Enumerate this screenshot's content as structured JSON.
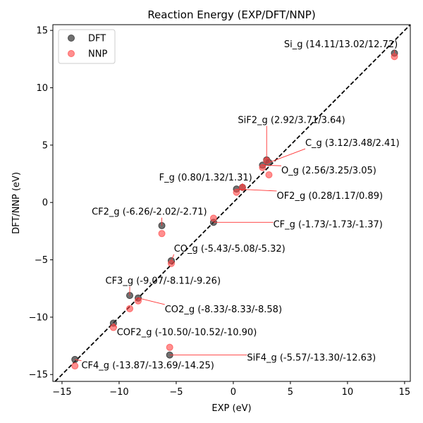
{
  "chart_data": {
    "type": "scatter",
    "title": "Reaction Energy (EXP/DFT/NNP)",
    "xlabel": "EXP (eV)",
    "ylabel": "DFT/NNP (eV)",
    "xlim": [
      -15.8,
      15.5
    ],
    "ylim": [
      -15.6,
      15.5
    ],
    "xticks": [
      -15,
      -10,
      -5,
      0,
      5,
      10,
      15
    ],
    "yticks": [
      -15,
      -10,
      -5,
      0,
      5,
      10,
      15
    ],
    "xtick_labels": [
      "−15",
      "−10",
      "−5",
      "0",
      "5",
      "10",
      "15"
    ],
    "ytick_labels": [
      "−15",
      "−10",
      "−5",
      "0",
      "5",
      "10",
      "15"
    ],
    "grid": false,
    "legend_position": "top-left",
    "reference_line": "y = x (dashed black)",
    "series": [
      {
        "name": "DFT",
        "color": "#333333",
        "points": [
          [
            14.11,
            13.02
          ],
          [
            2.92,
            3.71
          ],
          [
            3.12,
            3.48
          ],
          [
            2.56,
            3.25
          ],
          [
            0.8,
            1.32
          ],
          [
            0.28,
            1.17
          ],
          [
            -6.26,
            -2.02
          ],
          [
            -1.73,
            -1.73
          ],
          [
            -5.43,
            -5.08
          ],
          [
            -9.07,
            -8.11
          ],
          [
            -8.33,
            -8.33
          ],
          [
            -10.5,
            -10.52
          ],
          [
            -5.57,
            -13.3
          ],
          [
            -13.87,
            -13.69
          ]
        ]
      },
      {
        "name": "NNP",
        "color": "#ff4444",
        "points": [
          [
            14.11,
            12.72
          ],
          [
            2.92,
            3.64
          ],
          [
            3.12,
            2.41
          ],
          [
            2.56,
            3.05
          ],
          [
            0.8,
            1.31
          ],
          [
            0.28,
            0.89
          ],
          [
            -6.26,
            -2.71
          ],
          [
            -1.73,
            -1.37
          ],
          [
            -5.43,
            -5.32
          ],
          [
            -9.07,
            -9.26
          ],
          [
            -8.33,
            -8.58
          ],
          [
            -10.5,
            -10.9
          ],
          [
            -5.57,
            -12.63
          ],
          [
            -13.87,
            -14.25
          ]
        ]
      }
    ],
    "annotations": [
      {
        "text": "Si_g (14.11/13.02/12.72)",
        "target": [
          14.11,
          13.02
        ],
        "label_pos": [
          14.4,
          13.8
        ],
        "anchor": "end"
      },
      {
        "text": "SiF2_g (2.92/3.71/3.64)",
        "target": [
          2.92,
          3.71
        ],
        "label_pos": [
          0.4,
          7.2
        ],
        "anchor": "start"
      },
      {
        "text": "C_g (3.12/3.48/2.41)",
        "target": [
          3.12,
          3.48
        ],
        "label_pos": [
          6.3,
          5.2
        ],
        "anchor": "start"
      },
      {
        "text": "O_g (2.56/3.25/3.05)",
        "target": [
          2.56,
          3.25
        ],
        "label_pos": [
          4.2,
          2.8
        ],
        "anchor": "start"
      },
      {
        "text": "F_g (0.80/1.32/1.31)",
        "target": [
          0.8,
          1.32
        ],
        "label_pos": [
          -6.5,
          2.2
        ],
        "anchor": "start"
      },
      {
        "text": "OF2_g (0.28/1.17/0.89)",
        "target": [
          0.28,
          1.17
        ],
        "label_pos": [
          3.8,
          0.6
        ],
        "anchor": "start"
      },
      {
        "text": "CF2_g (-6.26/-2.02/-2.71)",
        "target": [
          -6.26,
          -2.02
        ],
        "label_pos": [
          -12.4,
          -0.8
        ],
        "anchor": "start"
      },
      {
        "text": "CF_g (-1.73/-1.73/-1.37)",
        "target": [
          -1.73,
          -1.73
        ],
        "label_pos": [
          3.5,
          -1.9
        ],
        "anchor": "start"
      },
      {
        "text": "CO_g (-5.43/-5.08/-5.32)",
        "target": [
          -5.43,
          -5.08
        ],
        "label_pos": [
          -5.2,
          -4.0
        ],
        "anchor": "start"
      },
      {
        "text": "CF3_g (-9.07/-8.11/-9.26)",
        "target": [
          -9.07,
          -8.11
        ],
        "label_pos": [
          -11.2,
          -6.8
        ],
        "anchor": "start"
      },
      {
        "text": "CO2_g (-8.33/-8.33/-8.58)",
        "target": [
          -8.33,
          -8.33
        ],
        "label_pos": [
          -6.0,
          -9.3
        ],
        "anchor": "start"
      },
      {
        "text": "COF2_g (-10.50/-10.52/-10.90)",
        "target": [
          -10.5,
          -10.52
        ],
        "label_pos": [
          -10.2,
          -11.3
        ],
        "anchor": "start"
      },
      {
        "text": "SiF4_g (-5.57/-13.30/-12.63)",
        "target": [
          -5.57,
          -13.3
        ],
        "label_pos": [
          1.2,
          -13.5
        ],
        "anchor": "start"
      },
      {
        "text": "CF4_g (-13.87/-13.69/-14.25)",
        "target": [
          -13.87,
          -13.69
        ],
        "label_pos": [
          -13.3,
          -14.2
        ],
        "anchor": "start"
      }
    ]
  }
}
